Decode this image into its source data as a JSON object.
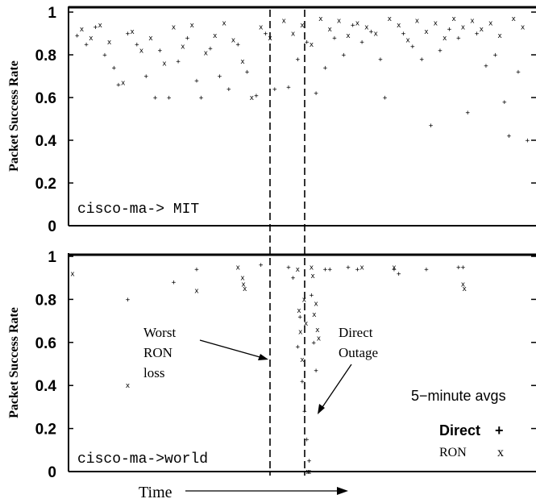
{
  "chart_data": {
    "type": "scatter",
    "xlabel": "Time",
    "ylim": [
      0,
      1
    ],
    "yticks": [
      "0",
      "0.2",
      "0.4",
      "0.6",
      "0.8",
      "1"
    ],
    "markers": {
      "Direct": "+",
      "RON": "x"
    },
    "panels": [
      {
        "label": "cisco-ma-> MIT",
        "ylabel": "Packet Success Rate",
        "series": [
          {
            "name": "Direct",
            "marker": "+",
            "points": [
              [
                1,
                0.89
              ],
              [
                3,
                0.85
              ],
              [
                5,
                0.93
              ],
              [
                7,
                0.8
              ],
              [
                9,
                0.74
              ],
              [
                10,
                0.66
              ],
              [
                12,
                0.9
              ],
              [
                14,
                0.85
              ],
              [
                16,
                0.7
              ],
              [
                18,
                0.6
              ],
              [
                19,
                0.82
              ],
              [
                21,
                0.6
              ],
              [
                23,
                0.77
              ],
              [
                25,
                0.88
              ],
              [
                27,
                0.68
              ],
              [
                28,
                0.6
              ],
              [
                30,
                0.83
              ],
              [
                32,
                0.7
              ],
              [
                34,
                0.64
              ],
              [
                36,
                0.85
              ],
              [
                38,
                0.72
              ],
              [
                40,
                0.61
              ],
              [
                42,
                0.9
              ],
              [
                44,
                0.64
              ],
              [
                47,
                0.65
              ],
              [
                49,
                0.78
              ],
              [
                51,
                0.86
              ],
              [
                53,
                0.62
              ],
              [
                55,
                0.74
              ],
              [
                57,
                0.88
              ],
              [
                59,
                0.8
              ],
              [
                61,
                0.94
              ],
              [
                63,
                0.86
              ],
              [
                65,
                0.91
              ],
              [
                67,
                0.78
              ],
              [
                68,
                0.6
              ],
              [
                72,
                0.9
              ],
              [
                74,
                0.84
              ],
              [
                76,
                0.78
              ],
              [
                78,
                0.47
              ],
              [
                80,
                0.82
              ],
              [
                82,
                0.92
              ],
              [
                84,
                0.88
              ],
              [
                86,
                0.53
              ],
              [
                88,
                0.9
              ],
              [
                90,
                0.75
              ],
              [
                92,
                0.8
              ],
              [
                94,
                0.58
              ],
              [
                95,
                0.42
              ],
              [
                97,
                0.72
              ],
              [
                99,
                0.4
              ]
            ]
          },
          {
            "name": "RON",
            "marker": "x",
            "points": [
              [
                2,
                0.92
              ],
              [
                4,
                0.88
              ],
              [
                6,
                0.94
              ],
              [
                8,
                0.86
              ],
              [
                11,
                0.67
              ],
              [
                13,
                0.91
              ],
              [
                15,
                0.82
              ],
              [
                17,
                0.88
              ],
              [
                20,
                0.76
              ],
              [
                22,
                0.93
              ],
              [
                24,
                0.84
              ],
              [
                26,
                0.94
              ],
              [
                29,
                0.81
              ],
              [
                31,
                0.89
              ],
              [
                33,
                0.95
              ],
              [
                35,
                0.87
              ],
              [
                37,
                0.77
              ],
              [
                39,
                0.6
              ],
              [
                41,
                0.93
              ],
              [
                43,
                0.88
              ],
              [
                46,
                0.96
              ],
              [
                48,
                0.9
              ],
              [
                50,
                0.94
              ],
              [
                52,
                0.85
              ],
              [
                54,
                0.97
              ],
              [
                56,
                0.92
              ],
              [
                58,
                0.96
              ],
              [
                60,
                0.89
              ],
              [
                62,
                0.95
              ],
              [
                64,
                0.93
              ],
              [
                66,
                0.9
              ],
              [
                69,
                0.97
              ],
              [
                71,
                0.94
              ],
              [
                73,
                0.87
              ],
              [
                75,
                0.96
              ],
              [
                77,
                0.91
              ],
              [
                79,
                0.95
              ],
              [
                81,
                0.88
              ],
              [
                83,
                0.97
              ],
              [
                85,
                0.93
              ],
              [
                87,
                0.96
              ],
              [
                89,
                0.92
              ],
              [
                91,
                0.95
              ],
              [
                93,
                0.89
              ],
              [
                96,
                0.97
              ],
              [
                98,
                0.93
              ]
            ]
          }
        ]
      },
      {
        "label": "cisco-ma->world",
        "ylabel": "Packet Success Rate",
        "series": [
          {
            "name": "Direct",
            "marker": "+",
            "points": [
              [
                12,
                0.8
              ],
              [
                22,
                0.88
              ],
              [
                27,
                0.94
              ],
              [
                41,
                0.96
              ],
              [
                47,
                0.95
              ],
              [
                48,
                0.9
              ],
              [
                49,
                0.58
              ],
              [
                49.5,
                0.72
              ],
              [
                50,
                0.42
              ],
              [
                50.5,
                0.28
              ],
              [
                51,
                0.15
              ],
              [
                51.5,
                0.05
              ],
              [
                52,
                0.82
              ],
              [
                52.5,
                0.6
              ],
              [
                53,
                0.47
              ],
              [
                54,
                0.3
              ],
              [
                55,
                0.94
              ],
              [
                56,
                0.94
              ],
              [
                60,
                0.95
              ],
              [
                62,
                0.94
              ],
              [
                70,
                0.94
              ],
              [
                71,
                0.92
              ],
              [
                77,
                0.94
              ],
              [
                84,
                0.95
              ],
              [
                85,
                0.95
              ]
            ]
          },
          {
            "name": "RON",
            "marker": "x",
            "points": [
              [
                0,
                0.92
              ],
              [
                12,
                0.4
              ],
              [
                27,
                0.84
              ],
              [
                36,
                0.95
              ],
              [
                37,
                0.9
              ],
              [
                37.2,
                0.87
              ],
              [
                37.5,
                0.85
              ],
              [
                49,
                0.94
              ],
              [
                49.3,
                0.75
              ],
              [
                49.6,
                0.65
              ],
              [
                50,
                0.52
              ],
              [
                50.4,
                0.8
              ],
              [
                50.8,
                0.69
              ],
              [
                51.2,
                0.0
              ],
              [
                51.5,
                0.0
              ],
              [
                52,
                0.95
              ],
              [
                52.3,
                0.91
              ],
              [
                52.6,
                0.73
              ],
              [
                53,
                0.78
              ],
              [
                53.3,
                0.66
              ],
              [
                53.6,
                0.62
              ],
              [
                63,
                0.95
              ],
              [
                70,
                0.95
              ],
              [
                85,
                0.87
              ],
              [
                85.3,
                0.85
              ]
            ]
          }
        ]
      }
    ],
    "annotations": {
      "worst_ron_loss": [
        "Worst",
        "RON",
        "loss"
      ],
      "direct_outage": [
        "Direct",
        "Outage"
      ]
    },
    "legend": {
      "title": "5−minute avgs",
      "entries": [
        {
          "name": "Direct",
          "symbol": "+"
        },
        {
          "name": "RON",
          "symbol": "x"
        }
      ]
    },
    "outage_window_x": [
      47,
      55
    ]
  }
}
